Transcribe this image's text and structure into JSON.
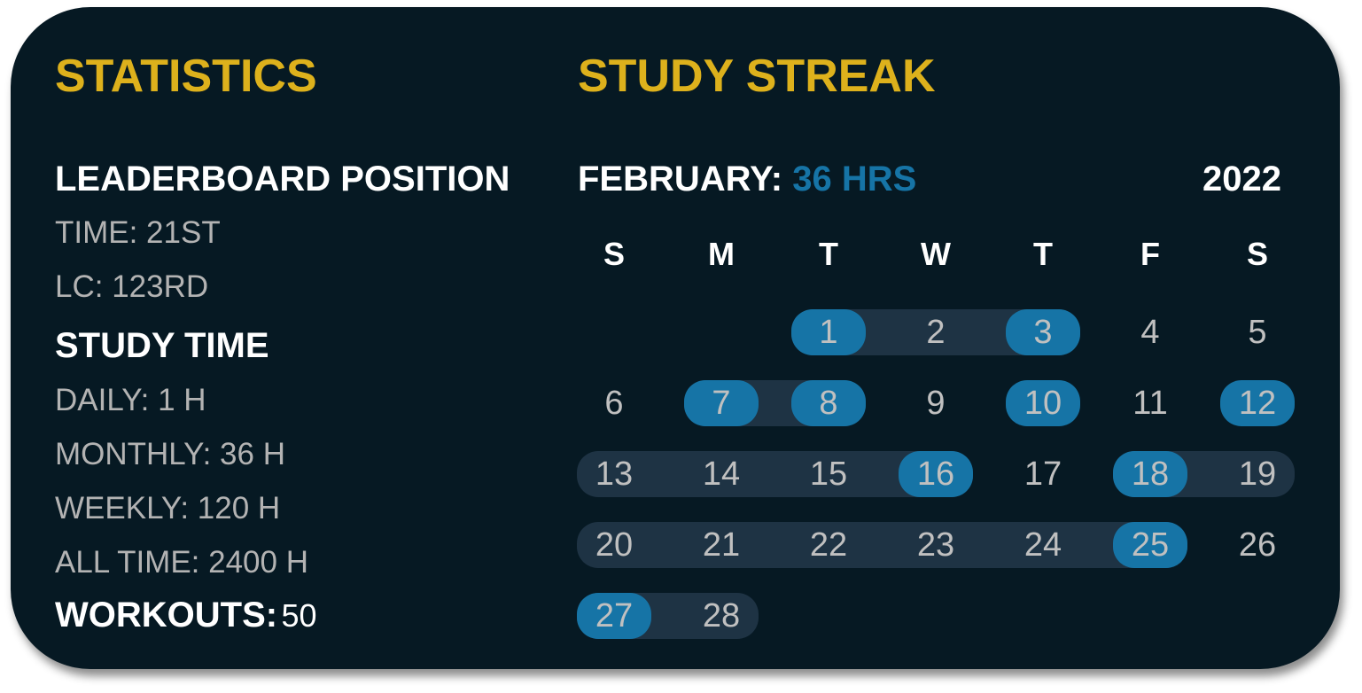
{
  "statistics": {
    "title": "STATISTICS",
    "leaderboard_heading": "LEADERBOARD POSITION",
    "time": "TIME: 21ST",
    "lc": "LC: 123RD",
    "study_time_heading": "STUDY TIME",
    "daily": "DAILY: 1 H",
    "monthly": "MONTHLY: 36 H",
    "weekly": "WEEKLY: 120 H",
    "all_time": "ALL TIME: 2400 H",
    "workouts_label": "WORKOUTS:",
    "workouts_value": "50"
  },
  "streak": {
    "title": "STUDY STREAK",
    "month_label": "FEBRUARY:",
    "month_hours": "36 HRS",
    "year": "2022",
    "weekdays": [
      "S",
      "M",
      "T",
      "W",
      "T",
      "F",
      "S"
    ],
    "first_weekday": 2,
    "days_in_month": 28,
    "highlighted_days": [
      1,
      3,
      7,
      8,
      10,
      12,
      16,
      18,
      25,
      27
    ],
    "streaks": [
      [
        1,
        3
      ],
      [
        7,
        8
      ],
      [
        13,
        16
      ],
      [
        18,
        19
      ],
      [
        20,
        25
      ],
      [
        27,
        28
      ]
    ],
    "colors": {
      "highlight": "#1674A6",
      "streak": "#1E3344",
      "accent": "#DDB11C"
    }
  }
}
